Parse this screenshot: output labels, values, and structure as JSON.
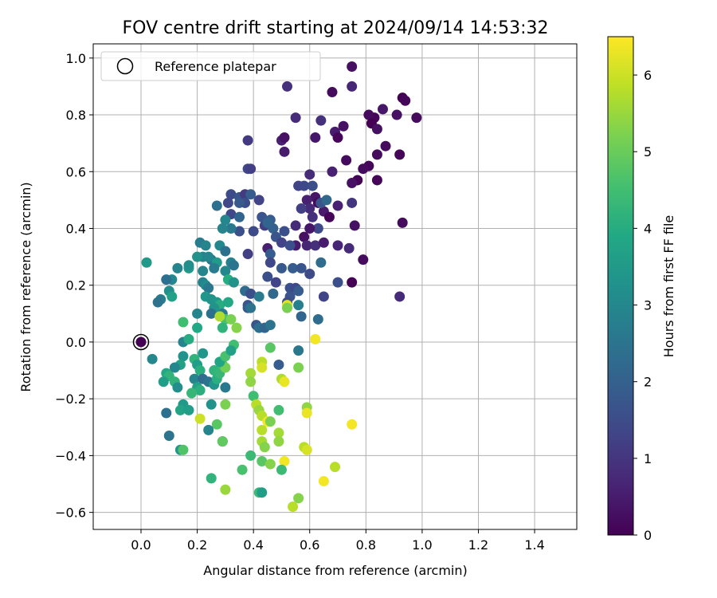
{
  "chart_data": {
    "type": "scatter",
    "title": "FOV centre drift starting at 2024/09/14 14:53:32",
    "xlabel": "Angular distance from reference (arcmin)",
    "ylabel": "Rotation from reference (arcmin)",
    "xlim": [
      -0.17,
      1.55
    ],
    "ylim": [
      -0.66,
      1.05
    ],
    "xticks": [
      "0.0",
      "0.2",
      "0.4",
      "0.6",
      "0.8",
      "1.0",
      "1.2",
      "1.4"
    ],
    "yticks": [
      "−0.6",
      "−0.4",
      "−0.2",
      "0.0",
      "0.2",
      "0.4",
      "0.6",
      "0.8",
      "1.0"
    ],
    "grid": true,
    "legend": {
      "placement": "top-left",
      "entries": [
        "Reference platepar"
      ]
    },
    "reference_point": {
      "x": 0.0,
      "y": 0.0
    },
    "colorbar": {
      "label": "Hours from first FF file",
      "colormap": "viridis",
      "min": 0,
      "max": 6.5,
      "ticks": [
        "0",
        "1",
        "2",
        "3",
        "4",
        "5",
        "6"
      ]
    },
    "points": [
      [
        0.75,
        0.97,
        0.3
      ],
      [
        0.93,
        0.86,
        0.0
      ],
      [
        0.94,
        0.85,
        0.1
      ],
      [
        0.98,
        0.79,
        0.2
      ],
      [
        0.86,
        0.82,
        0.4
      ],
      [
        0.91,
        0.8,
        0.3
      ],
      [
        0.83,
        0.79,
        0.1
      ],
      [
        0.81,
        0.8,
        0.2
      ],
      [
        0.82,
        0.77,
        0.0
      ],
      [
        0.84,
        0.75,
        0.3
      ],
      [
        0.87,
        0.69,
        0.2
      ],
      [
        0.92,
        0.66,
        0.1
      ],
      [
        0.84,
        0.66,
        0.2
      ],
      [
        0.81,
        0.62,
        0.1
      ],
      [
        0.79,
        0.61,
        0.2
      ],
      [
        0.84,
        0.57,
        0.1
      ],
      [
        0.77,
        0.57,
        0.0
      ],
      [
        0.75,
        0.56,
        0.3
      ],
      [
        0.68,
        0.88,
        0.2
      ],
      [
        0.75,
        0.9,
        0.7
      ],
      [
        0.52,
        0.9,
        0.9
      ],
      [
        0.55,
        0.79,
        0.8
      ],
      [
        0.64,
        0.78,
        0.9
      ],
      [
        0.72,
        0.76,
        0.3
      ],
      [
        0.69,
        0.74,
        0.5
      ],
      [
        0.62,
        0.72,
        0.4
      ],
      [
        0.7,
        0.72,
        0.1
      ],
      [
        0.5,
        0.71,
        0.6
      ],
      [
        0.51,
        0.72,
        0.3
      ],
      [
        0.51,
        0.67,
        0.5
      ],
      [
        0.38,
        0.71,
        1.1
      ],
      [
        0.73,
        0.64,
        0.2
      ],
      [
        0.68,
        0.6,
        0.6
      ],
      [
        0.6,
        0.59,
        0.8
      ],
      [
        0.56,
        0.55,
        1.3
      ],
      [
        0.62,
        0.51,
        0.4
      ],
      [
        0.59,
        0.5,
        0.6
      ],
      [
        0.63,
        0.49,
        0.2
      ],
      [
        0.65,
        0.46,
        0.5
      ],
      [
        0.6,
        0.47,
        0.8
      ],
      [
        0.57,
        0.47,
        1.2
      ],
      [
        0.61,
        0.44,
        0.9
      ],
      [
        0.67,
        0.44,
        0.1
      ],
      [
        0.7,
        0.48,
        0.6
      ],
      [
        0.75,
        0.49,
        1.0
      ],
      [
        0.76,
        0.41,
        0.3
      ],
      [
        0.63,
        0.4,
        1.4
      ],
      [
        0.55,
        0.41,
        0.8
      ],
      [
        0.6,
        0.4,
        0.4
      ],
      [
        0.58,
        0.37,
        0.3
      ],
      [
        0.55,
        0.34,
        0.5
      ],
      [
        0.59,
        0.34,
        0.7
      ],
      [
        0.62,
        0.34,
        0.9
      ],
      [
        0.65,
        0.35,
        0.5
      ],
      [
        0.7,
        0.34,
        0.7
      ],
      [
        0.74,
        0.33,
        0.8
      ],
      [
        0.79,
        0.29,
        0.2
      ],
      [
        0.93,
        0.42,
        0.2
      ],
      [
        0.75,
        0.21,
        0.0
      ],
      [
        0.7,
        0.21,
        1.6
      ],
      [
        0.92,
        0.16,
        0.8
      ],
      [
        0.58,
        0.55,
        1.4
      ],
      [
        0.61,
        0.55,
        1.6
      ],
      [
        0.64,
        0.49,
        1.7
      ],
      [
        0.66,
        0.5,
        2.2
      ],
      [
        0.38,
        0.61,
        1.4
      ],
      [
        0.39,
        0.61,
        1.2
      ],
      [
        0.32,
        0.52,
        1.5
      ],
      [
        0.35,
        0.51,
        1.7
      ],
      [
        0.37,
        0.52,
        1.1
      ],
      [
        0.39,
        0.52,
        1.9
      ],
      [
        0.42,
        0.5,
        1.3
      ],
      [
        0.31,
        0.49,
        1.4
      ],
      [
        0.37,
        0.49,
        1.5
      ],
      [
        0.35,
        0.49,
        1.8
      ],
      [
        0.27,
        0.48,
        2.4
      ],
      [
        0.32,
        0.45,
        1.4
      ],
      [
        0.35,
        0.44,
        2.1
      ],
      [
        0.43,
        0.44,
        1.7
      ],
      [
        0.46,
        0.43,
        1.9
      ],
      [
        0.44,
        0.41,
        1.2
      ],
      [
        0.47,
        0.4,
        2.0
      ],
      [
        0.51,
        0.39,
        1.6
      ],
      [
        0.4,
        0.39,
        1.5
      ],
      [
        0.45,
        0.42,
        2.1
      ],
      [
        0.35,
        0.39,
        1.6
      ],
      [
        0.3,
        0.43,
        3.0
      ],
      [
        0.32,
        0.4,
        2.6
      ],
      [
        0.29,
        0.4,
        2.9
      ],
      [
        0.48,
        0.37,
        1.7
      ],
      [
        0.5,
        0.35,
        1.3
      ],
      [
        0.53,
        0.34,
        1.6
      ],
      [
        0.45,
        0.33,
        0.6
      ],
      [
        0.46,
        0.31,
        1.9
      ],
      [
        0.38,
        0.31,
        1.2
      ],
      [
        0.46,
        0.28,
        1.4
      ],
      [
        0.5,
        0.26,
        1.8
      ],
      [
        0.54,
        0.26,
        1.9
      ],
      [
        0.57,
        0.26,
        1.7
      ],
      [
        0.6,
        0.24,
        1.5
      ],
      [
        0.64,
        0.28,
        2.3
      ],
      [
        0.45,
        0.23,
        1.6
      ],
      [
        0.48,
        0.21,
        1.3
      ],
      [
        0.53,
        0.19,
        1.6
      ],
      [
        0.55,
        0.19,
        1.4
      ],
      [
        0.56,
        0.18,
        1.9
      ],
      [
        0.53,
        0.16,
        1.7
      ],
      [
        0.52,
        0.14,
        1.5
      ],
      [
        0.47,
        0.17,
        2.2
      ],
      [
        0.37,
        0.18,
        2.3
      ],
      [
        0.39,
        0.17,
        1.6
      ],
      [
        0.42,
        0.16,
        2.7
      ],
      [
        0.38,
        0.13,
        1.7
      ],
      [
        0.38,
        0.12,
        1.8
      ],
      [
        0.39,
        0.12,
        2.5
      ],
      [
        0.65,
        0.16,
        1.3
      ],
      [
        0.56,
        0.13,
        2.8
      ],
      [
        0.52,
        0.13,
        6.2
      ],
      [
        0.52,
        0.12,
        5.2
      ],
      [
        0.57,
        0.09,
        2.1
      ],
      [
        0.63,
        0.08,
        2.3
      ],
      [
        0.28,
        0.34,
        3.0
      ],
      [
        0.25,
        0.29,
        2.5
      ],
      [
        0.21,
        0.35,
        2.7
      ],
      [
        0.23,
        0.34,
        2.9
      ],
      [
        0.3,
        0.32,
        2.4
      ],
      [
        0.32,
        0.28,
        2.8
      ],
      [
        0.27,
        0.28,
        3.5
      ],
      [
        0.22,
        0.3,
        2.9
      ],
      [
        0.24,
        0.3,
        3.0
      ],
      [
        0.2,
        0.3,
        3.3
      ],
      [
        0.17,
        0.26,
        3.5
      ],
      [
        0.17,
        0.27,
        3.2
      ],
      [
        0.13,
        0.26,
        2.9
      ],
      [
        0.02,
        0.28,
        3.5
      ],
      [
        0.33,
        0.27,
        2.5
      ],
      [
        0.3,
        0.25,
        3.0
      ],
      [
        0.26,
        0.26,
        2.7
      ],
      [
        0.31,
        0.22,
        4.0
      ],
      [
        0.33,
        0.21,
        3.3
      ],
      [
        0.22,
        0.25,
        2.9
      ],
      [
        0.22,
        0.21,
        2.8
      ],
      [
        0.23,
        0.2,
        3.1
      ],
      [
        0.24,
        0.19,
        2.6
      ],
      [
        0.11,
        0.22,
        3.0
      ],
      [
        0.09,
        0.22,
        2.4
      ],
      [
        0.07,
        0.15,
        2.7
      ],
      [
        0.1,
        0.18,
        3.2
      ],
      [
        0.11,
        0.16,
        3.7
      ],
      [
        0.06,
        0.14,
        2.5
      ],
      [
        0.23,
        0.16,
        3.4
      ],
      [
        0.25,
        0.15,
        3.3
      ],
      [
        0.27,
        0.14,
        3.4
      ],
      [
        0.28,
        0.13,
        4.0
      ],
      [
        0.31,
        0.14,
        3.9
      ],
      [
        0.26,
        0.12,
        3.3
      ],
      [
        0.25,
        0.1,
        2.4
      ],
      [
        0.2,
        0.1,
        2.9
      ],
      [
        0.29,
        0.1,
        2.7
      ],
      [
        0.3,
        0.08,
        4.6
      ],
      [
        0.32,
        0.08,
        5.2
      ],
      [
        0.29,
        0.05,
        4.2
      ],
      [
        0.28,
        0.09,
        5.7
      ],
      [
        0.34,
        0.05,
        5.3
      ],
      [
        0.41,
        0.06,
        1.7
      ],
      [
        0.42,
        0.05,
        2.4
      ],
      [
        0.44,
        0.05,
        2.1
      ],
      [
        0.46,
        0.06,
        2.5
      ],
      [
        0.2,
        0.05,
        3.9
      ],
      [
        0.15,
        0.07,
        4.5
      ],
      [
        0.0,
        0.0,
        0.0
      ],
      [
        0.04,
        -0.06,
        3.0
      ],
      [
        0.15,
        0.0,
        2.9
      ],
      [
        0.17,
        0.01,
        4.0
      ],
      [
        0.15,
        -0.05,
        3.3
      ],
      [
        0.14,
        -0.08,
        3.7
      ],
      [
        0.12,
        -0.09,
        3.0
      ],
      [
        0.09,
        -0.11,
        3.9
      ],
      [
        0.1,
        -0.12,
        4.2
      ],
      [
        0.08,
        -0.14,
        3.6
      ],
      [
        0.12,
        -0.14,
        4.2
      ],
      [
        0.13,
        -0.16,
        3.2
      ],
      [
        0.19,
        -0.06,
        4.2
      ],
      [
        0.2,
        -0.08,
        3.6
      ],
      [
        0.22,
        -0.04,
        3.4
      ],
      [
        0.21,
        -0.1,
        4.1
      ],
      [
        0.19,
        -0.13,
        2.9
      ],
      [
        0.2,
        -0.16,
        3.7
      ],
      [
        0.21,
        -0.17,
        4.1
      ],
      [
        0.18,
        -0.18,
        4.3
      ],
      [
        0.22,
        -0.13,
        2.3
      ],
      [
        0.24,
        -0.14,
        2.5
      ],
      [
        0.26,
        -0.1,
        4.2
      ],
      [
        0.26,
        -0.15,
        3.4
      ],
      [
        0.27,
        -0.13,
        4.1
      ],
      [
        0.28,
        -0.11,
        4.3
      ],
      [
        0.29,
        -0.08,
        4.5
      ],
      [
        0.3,
        -0.09,
        5.1
      ],
      [
        0.28,
        -0.07,
        3.8
      ],
      [
        0.3,
        -0.05,
        4.6
      ],
      [
        0.33,
        -0.01,
        4.5
      ],
      [
        0.32,
        -0.03,
        3.7
      ],
      [
        0.3,
        -0.16,
        2.6
      ],
      [
        0.39,
        -0.11,
        5.6
      ],
      [
        0.39,
        -0.14,
        5.4
      ],
      [
        0.4,
        -0.19,
        4.5
      ],
      [
        0.43,
        -0.07,
        5.8
      ],
      [
        0.43,
        -0.09,
        6.1
      ],
      [
        0.46,
        -0.02,
        4.8
      ],
      [
        0.49,
        -0.08,
        1.9
      ],
      [
        0.5,
        -0.13,
        5.7
      ],
      [
        0.51,
        -0.14,
        6.3
      ],
      [
        0.56,
        -0.03,
        2.6
      ],
      [
        0.56,
        -0.09,
        5.2
      ],
      [
        0.62,
        0.01,
        6.4
      ],
      [
        0.15,
        -0.22,
        3.5
      ],
      [
        0.14,
        -0.24,
        3.8
      ],
      [
        0.17,
        -0.24,
        3.6
      ],
      [
        0.09,
        -0.25,
        2.4
      ],
      [
        0.21,
        -0.27,
        6.0
      ],
      [
        0.25,
        -0.22,
        3.3
      ],
      [
        0.3,
        -0.22,
        5.2
      ],
      [
        0.27,
        -0.29,
        4.8
      ],
      [
        0.24,
        -0.31,
        2.9
      ],
      [
        0.29,
        -0.35,
        2.1
      ],
      [
        0.29,
        -0.35,
        4.9
      ],
      [
        0.41,
        -0.22,
        5.8
      ],
      [
        0.42,
        -0.24,
        5.5
      ],
      [
        0.43,
        -0.26,
        5.8
      ],
      [
        0.45,
        -0.28,
        6.4
      ],
      [
        0.46,
        -0.28,
        5.2
      ],
      [
        0.49,
        -0.24,
        4.5
      ],
      [
        0.59,
        -0.23,
        5.4
      ],
      [
        0.59,
        -0.25,
        6.3
      ],
      [
        0.75,
        -0.29,
        6.4
      ],
      [
        0.43,
        -0.31,
        5.8
      ],
      [
        0.43,
        -0.35,
        5.6
      ],
      [
        0.44,
        -0.37,
        5.3
      ],
      [
        0.49,
        -0.32,
        5.6
      ],
      [
        0.49,
        -0.35,
        5.4
      ],
      [
        0.58,
        -0.37,
        5.8
      ],
      [
        0.59,
        -0.38,
        6.1
      ],
      [
        0.1,
        -0.33,
        2.5
      ],
      [
        0.14,
        -0.38,
        3.4
      ],
      [
        0.15,
        -0.38,
        4.7
      ],
      [
        0.39,
        -0.4,
        4.4
      ],
      [
        0.43,
        -0.42,
        4.8
      ],
      [
        0.51,
        -0.42,
        6.4
      ],
      [
        0.46,
        -0.43,
        5.3
      ],
      [
        0.5,
        -0.45,
        4.4
      ],
      [
        0.69,
        -0.44,
        5.8
      ],
      [
        0.36,
        -0.45,
        4.6
      ],
      [
        0.25,
        -0.48,
        4.2
      ],
      [
        0.3,
        -0.52,
        5.5
      ],
      [
        0.42,
        -0.53,
        4.4
      ],
      [
        0.43,
        -0.53,
        3.6
      ],
      [
        0.56,
        -0.55,
        5.3
      ],
      [
        0.54,
        -0.58,
        5.8
      ],
      [
        0.65,
        -0.49,
        6.4
      ]
    ]
  }
}
